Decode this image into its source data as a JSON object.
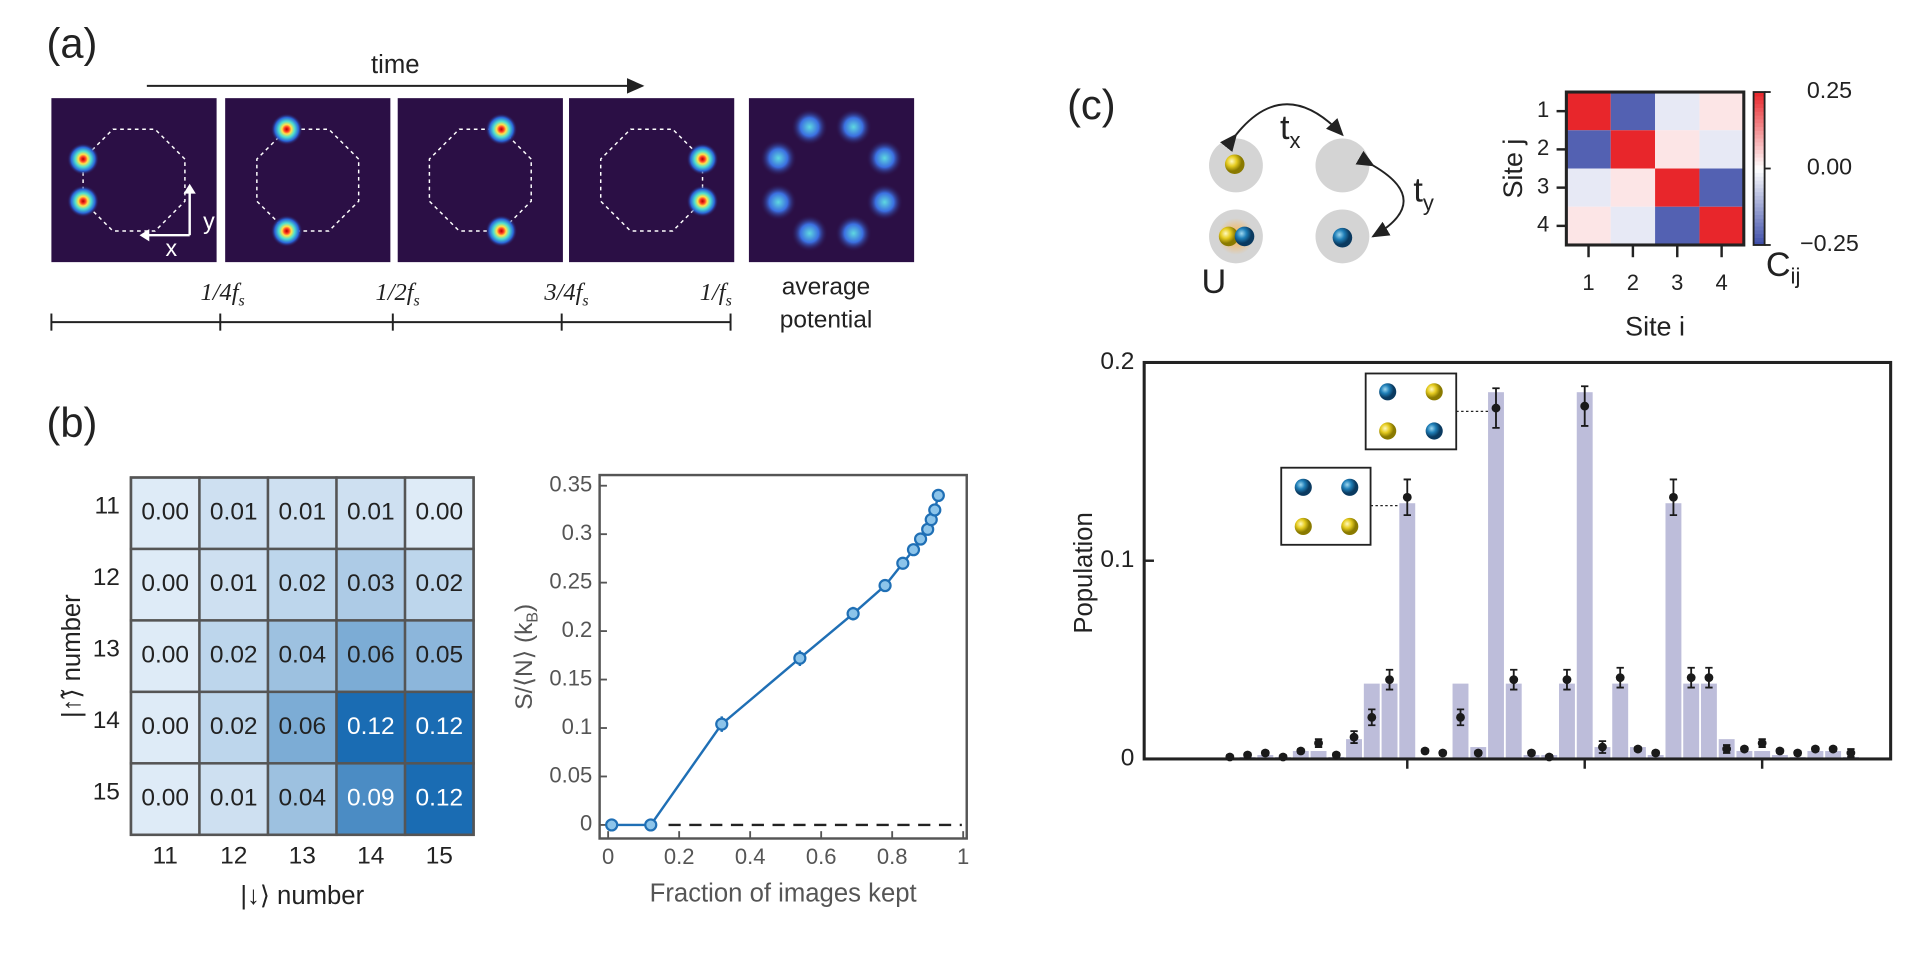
{
  "panel_a": {
    "label": "(a)",
    "time_label": "time",
    "axis_x": "x",
    "axis_y": "y",
    "timeline": [
      {
        "main": "1/4f",
        "sub": "s"
      },
      {
        "main": "1/2f",
        "sub": "s"
      },
      {
        "main": "3/4f",
        "sub": "s"
      },
      {
        "main": "1/f",
        "sub": "s"
      }
    ],
    "average_label": [
      "average",
      "potential"
    ]
  },
  "panel_b": {
    "label": "(b)"
  },
  "panel_c": {
    "label": "(c)",
    "hop_x": {
      "main": "t",
      "sub": "x"
    },
    "hop_y": {
      "main": "t",
      "sub": "y"
    },
    "interaction": "U"
  },
  "chart_data": [
    {
      "type": "heatmap",
      "x_categories": [
        "11",
        "12",
        "13",
        "14",
        "15"
      ],
      "y_categories": [
        "11",
        "12",
        "13",
        "14",
        "15"
      ],
      "values": [
        [
          0,
          0.01,
          0.01,
          0.01,
          0
        ],
        [
          0,
          0.01,
          0.02,
          0.03,
          0.02
        ],
        [
          0,
          0.02,
          0.04,
          0.06,
          0.05
        ],
        [
          0,
          0.02,
          0.06,
          0.12,
          0.12
        ],
        [
          0,
          0.01,
          0.04,
          0.09,
          0.12
        ]
      ],
      "value_labels": [
        [
          "0.00",
          "0.01",
          "0.01",
          "0.01",
          "0.00"
        ],
        [
          "0.00",
          "0.01",
          "0.02",
          "0.03",
          "0.02"
        ],
        [
          "0.00",
          "0.02",
          "0.04",
          "0.06",
          "0.05"
        ],
        [
          "0.00",
          "0.02",
          "0.06",
          "0.12",
          "0.12"
        ],
        [
          "0.00",
          "0.01",
          "0.04",
          "0.09",
          "0.12"
        ]
      ],
      "xlabel": "|↓⟩ number",
      "ylabel": "|↑̃⟩ number",
      "colors": [
        "#deebf7",
        "#1a6cb3"
      ]
    },
    {
      "type": "line",
      "x": [
        0.01,
        0.12,
        0.32,
        0.54,
        0.69,
        0.78,
        0.83,
        0.86,
        0.88,
        0.9,
        0.91,
        0.92,
        0.93
      ],
      "values": [
        0,
        0,
        0.104,
        0.172,
        0.218,
        0.247,
        0.27,
        0.284,
        0.295,
        0.305,
        0.315,
        0.325,
        0.34
      ],
      "errors": [
        0.003,
        0.003,
        0.008,
        0.008,
        0.007,
        0.006,
        0.005,
        0.005,
        0.004,
        0.004,
        0.004,
        0.004,
        0.004
      ],
      "color": "#1f6fb5",
      "xlim": [
        -0.024,
        1.01
      ],
      "ylim": [
        -0.014,
        0.361
      ],
      "xticks": [
        0,
        0.2,
        0.4,
        0.6,
        0.8,
        1
      ],
      "yticks": [
        0,
        0.05,
        0.1,
        0.15,
        0.2,
        0.25,
        0.3,
        0.35
      ],
      "xlabel": "Fraction of images kept",
      "ylabel": {
        "main": "S/⟨N⟩ (k",
        "sub": "B",
        "tail": ")"
      },
      "reference_line": {
        "y": 0,
        "x_start": 0.17
      }
    },
    {
      "type": "heatmap",
      "x_categories": [
        "1",
        "2",
        "3",
        "4"
      ],
      "y_categories": [
        "1",
        "2",
        "3",
        "4"
      ],
      "values": [
        [
          0.25,
          -0.22,
          -0.03,
          0.03
        ],
        [
          -0.22,
          0.25,
          0.03,
          -0.03
        ],
        [
          -0.03,
          0.03,
          0.25,
          -0.22
        ],
        [
          0.03,
          -0.03,
          -0.22,
          0.25
        ]
      ],
      "xlabel": "Site i",
      "ylabel": "Site j",
      "colors": [
        "#3b4ba8",
        "#ffffff",
        "#e8262b"
      ],
      "colorbar": {
        "label": {
          "main": "C",
          "sub": "ij"
        },
        "lim": [
          -0.25,
          0.25
        ],
        "ticks": [
          0.25,
          {
            "value": 0,
            "label": "0.00"
          },
          {
            "value": -0.25,
            "label": "−0.25"
          }
        ]
      }
    },
    {
      "type": "bar",
      "categories": [
        null,
        null,
        null,
        null,
        null,
        null,
        null,
        null,
        null,
        null,
        null,
        null,
        null,
        null,
        null,
        null,
        null,
        null,
        null,
        null,
        null,
        null,
        null,
        null,
        null,
        null,
        null,
        null,
        null,
        null,
        null,
        null,
        null,
        null,
        null,
        null
      ],
      "series": [
        {
          "mark": "bar",
          "color": "#bdbdda",
          "values": [
            0,
            0.001,
            0.002,
            0.001,
            0.004,
            0.004,
            0.001,
            0.01,
            0.038,
            0.038,
            0.129,
            0,
            0,
            0.038,
            0.006,
            0.185,
            0.038,
            0.002,
            0.002,
            0.038,
            0.185,
            0.006,
            0.038,
            0.006,
            0.002,
            0.129,
            0.038,
            0.038,
            0.01,
            0.004,
            0.004,
            0.002,
            0.001,
            0.004,
            0.004,
            0.001
          ]
        },
        {
          "mark": "point",
          "color": "#1a1a1a",
          "values": [
            0.001,
            0.002,
            0.003,
            0.001,
            0.004,
            0.008,
            0.002,
            0.011,
            0.021,
            0.04,
            0.132,
            0.004,
            0.003,
            0.021,
            0.003,
            0.177,
            0.04,
            0.003,
            0.001,
            0.04,
            0.178,
            0.006,
            0.041,
            0.005,
            0.003,
            0.132,
            0.041,
            0.041,
            0.005,
            0.005,
            0.008,
            0.004,
            0.003,
            0.005,
            0.005,
            0.003
          ],
          "errors": [
            0.001,
            0.001,
            0.001,
            0.001,
            0.001,
            0.002,
            0.001,
            0.003,
            0.004,
            0.005,
            0.009,
            0.001,
            0.001,
            0.004,
            0.001,
            0.01,
            0.005,
            0.001,
            0.001,
            0.005,
            0.01,
            0.003,
            0.005,
            0.001,
            0.001,
            0.009,
            0.005,
            0.005,
            0.002,
            0.001,
            0.002,
            0.001,
            0.001,
            0.001,
            0.001,
            0.002
          ]
        }
      ],
      "ylim": [
        0,
        0.2
      ],
      "yticks": [
        0,
        0.1,
        0.2
      ],
      "xticks": [
        10,
        20,
        30
      ],
      "ylabel": "Population"
    }
  ]
}
